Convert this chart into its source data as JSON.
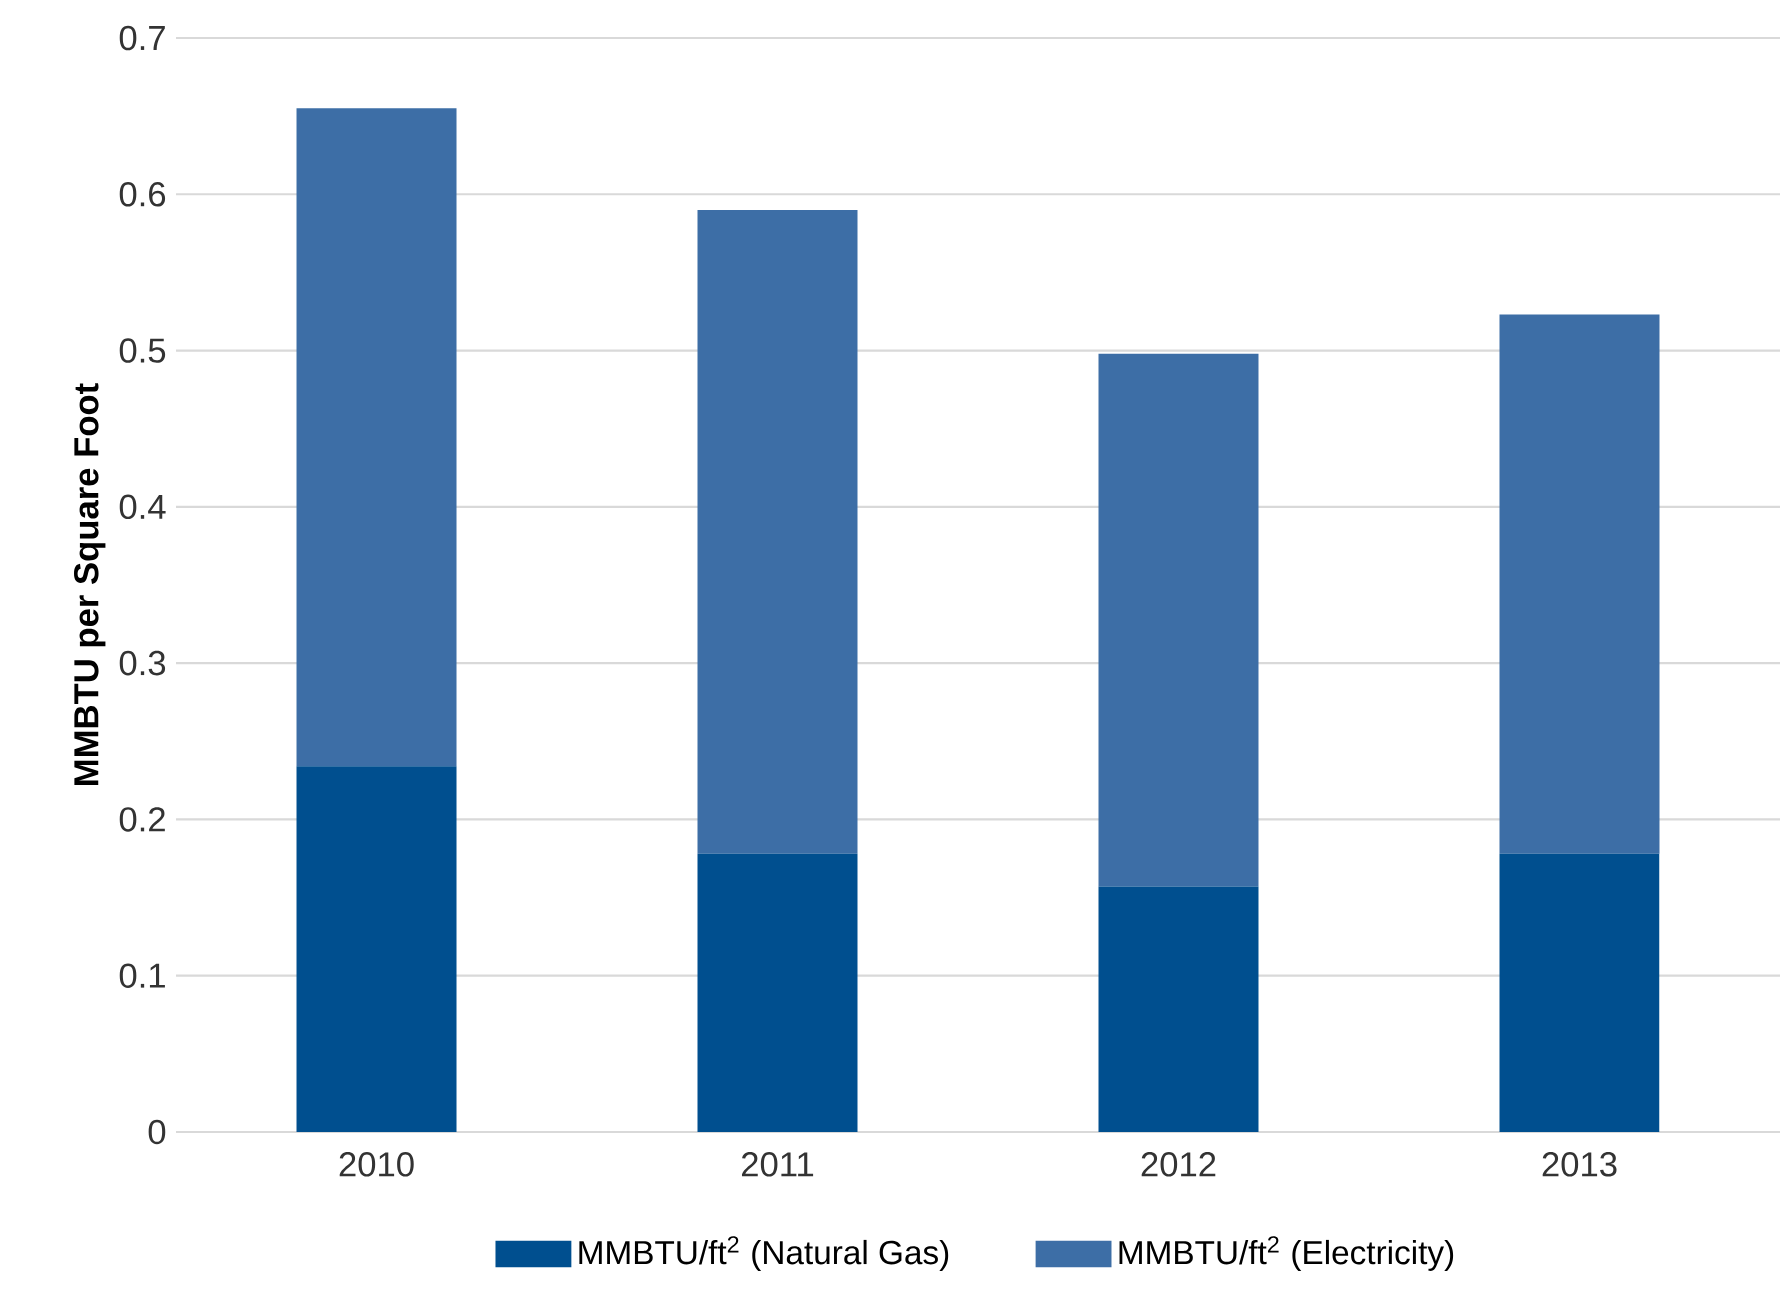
{
  "chart_data": {
    "type": "bar",
    "stacked": true,
    "ylabel": "MMBTU per Square Foot",
    "categories": [
      "2010",
      "2011",
      "2012",
      "2013"
    ],
    "series": [
      {
        "name": "MMBTU/ft$^{2}$ (Natural Gas)",
        "color": "#004f8f",
        "values": [
          0.234,
          0.178,
          0.157,
          0.178
        ]
      },
      {
        "name": "MMBTU/ft$^{2}$ (Electricity)",
        "color": "#3d6ea6",
        "values": [
          0.421,
          0.412,
          0.341,
          0.345
        ]
      }
    ],
    "ylim": [
      0,
      0.7
    ],
    "yticks": [
      0,
      0.1,
      0.2,
      0.3,
      0.4,
      0.5,
      0.6,
      0.7
    ],
    "grid": "y",
    "legend": "bottom"
  }
}
